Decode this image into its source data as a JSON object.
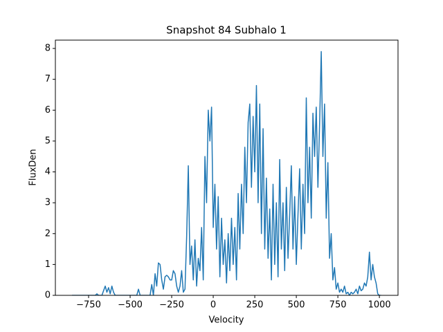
{
  "chart_data": {
    "type": "line",
    "title": "Snapshot 84 Subhalo 1",
    "xlabel": "Velocity",
    "ylabel": "FluxDen",
    "grid": false,
    "xlim": [
      -950,
      1112
    ],
    "ylim": [
      0,
      8.27
    ],
    "xticks": [
      {
        "value": -750,
        "label": "−750"
      },
      {
        "value": -500,
        "label": "−500"
      },
      {
        "value": -250,
        "label": "−250"
      },
      0,
      250,
      500,
      750,
      1000
    ],
    "yticks": [
      0,
      1,
      2,
      3,
      4,
      5,
      6,
      7,
      8
    ],
    "x": [
      -850,
      -840,
      -830,
      -820,
      -810,
      -800,
      -790,
      -780,
      -770,
      -760,
      -750,
      -740,
      -730,
      -720,
      -710,
      -700,
      -690,
      -680,
      -670,
      -660,
      -650,
      -640,
      -630,
      -620,
      -610,
      -600,
      -590,
      -580,
      -570,
      -560,
      -550,
      -540,
      -530,
      -520,
      -510,
      -500,
      -490,
      -480,
      -470,
      -460,
      -450,
      -440,
      -430,
      -420,
      -410,
      -400,
      -390,
      -380,
      -370,
      -360,
      -350,
      -340,
      -330,
      -320,
      -310,
      -300,
      -290,
      -280,
      -270,
      -260,
      -250,
      -240,
      -230,
      -220,
      -210,
      -200,
      -190,
      -180,
      -170,
      -160,
      -150,
      -140,
      -130,
      -120,
      -110,
      -100,
      -90,
      -80,
      -70,
      -60,
      -50,
      -40,
      -30,
      -20,
      -10,
      0,
      10,
      20,
      30,
      40,
      50,
      60,
      70,
      80,
      90,
      100,
      110,
      120,
      130,
      140,
      150,
      160,
      170,
      180,
      190,
      200,
      210,
      220,
      230,
      240,
      250,
      260,
      270,
      280,
      290,
      300,
      310,
      320,
      330,
      340,
      350,
      360,
      370,
      380,
      390,
      400,
      410,
      420,
      430,
      440,
      450,
      460,
      470,
      480,
      490,
      500,
      510,
      520,
      530,
      540,
      550,
      560,
      570,
      580,
      590,
      600,
      610,
      620,
      630,
      640,
      650,
      660,
      670,
      680,
      690,
      700,
      710,
      720,
      730,
      740,
      750,
      760,
      770,
      780,
      790,
      800,
      810,
      820,
      830,
      840,
      850,
      860,
      870,
      880,
      890,
      900,
      910,
      920,
      930,
      940,
      950,
      960,
      970,
      980,
      990,
      1000,
      1010
    ],
    "series": [
      {
        "color": "#1f77b4",
        "values": [
          0,
          0,
          0,
          0,
          0,
          0,
          0,
          0,
          0,
          0,
          0,
          0,
          0,
          0,
          0,
          0.05,
          0,
          0,
          0,
          0.15,
          0.3,
          0.1,
          0.25,
          0.05,
          0.3,
          0.1,
          0,
          0,
          0,
          0,
          0,
          0,
          0,
          0,
          0,
          0,
          0,
          0,
          0,
          0,
          0.2,
          0,
          0,
          0,
          0,
          0,
          0,
          0,
          0.35,
          0,
          0.7,
          0.3,
          1.05,
          1.0,
          0.5,
          0.2,
          0.6,
          0.65,
          0.6,
          0.5,
          0.5,
          0.8,
          0.7,
          0.3,
          0.1,
          0.3,
          0.8,
          0.1,
          0.2,
          1.9,
          4.2,
          1.0,
          1.6,
          0.5,
          1.8,
          0.3,
          1.2,
          0.8,
          2.2,
          0.5,
          4.5,
          3.0,
          6.0,
          5.0,
          6.1,
          2.2,
          3.6,
          1.5,
          3.2,
          0.6,
          2.5,
          1.0,
          1.8,
          0.4,
          2.0,
          0.8,
          2.5,
          1.0,
          2.2,
          0.5,
          3.3,
          1.5,
          3.6,
          2.0,
          4.8,
          3.0,
          5.6,
          6.2,
          3.5,
          5.8,
          4.0,
          6.8,
          3.0,
          6.2,
          2.0,
          5.4,
          1.5,
          3.8,
          1.2,
          2.8,
          0.5,
          3.6,
          1.0,
          3.0,
          0.6,
          4.4,
          1.5,
          3.0,
          0.8,
          3.5,
          1.2,
          2.6,
          4.2,
          1.5,
          3.2,
          1.0,
          2.6,
          4.1,
          1.5,
          3.6,
          2.0,
          6.4,
          3.0,
          4.8,
          2.5,
          5.9,
          4.5,
          6.1,
          3.5,
          5.5,
          7.9,
          4.5,
          6.2,
          2.5,
          4.3,
          1.2,
          2.0,
          0.5,
          0.9,
          0.2,
          0.4,
          0.1,
          0.2,
          0.1,
          0.3,
          0.05,
          0.1,
          0,
          0.1,
          0.05,
          0.1,
          0.2,
          0.05,
          0.3,
          0.15,
          0.2,
          0.4,
          0.3,
          0.6,
          1.4,
          0.5,
          1.0,
          0.6,
          0.4,
          0.05,
          0,
          0
        ]
      }
    ]
  }
}
